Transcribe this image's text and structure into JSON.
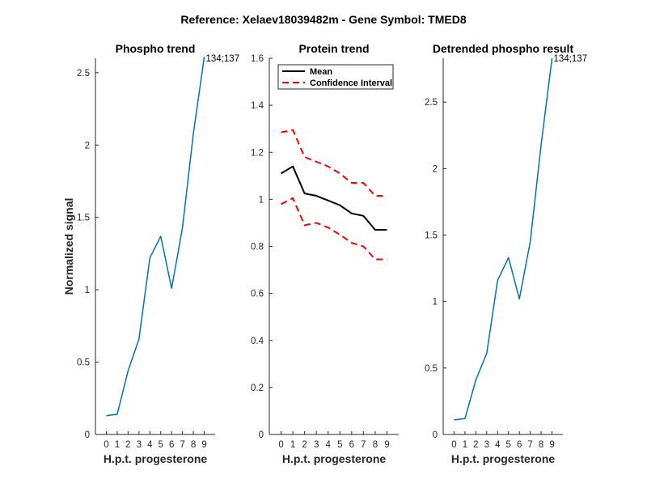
{
  "figure": {
    "suptitle": "Reference:  Xelaev18039482m - Gene Symbol:  TMED8",
    "blue": "#0072BD",
    "black": "#000000",
    "red": "#FF0000"
  },
  "chart_data": [
    {
      "type": "line",
      "title": "Phospho trend",
      "xlabel": "H.p.t. progesterone",
      "ylabel": "Normalized signal",
      "xlim": [
        -1,
        10
      ],
      "ylim": [
        0,
        2.6
      ],
      "x_ticks": [
        0,
        1,
        2,
        3,
        4,
        5,
        6,
        7,
        8,
        9
      ],
      "y_ticks": [
        0,
        0.5,
        1,
        1.5,
        2,
        2.5
      ],
      "y_tick_labels": [
        "0",
        "0.5",
        "1",
        "1.5",
        "2",
        "2.5"
      ],
      "series": [
        {
          "x": [
            0,
            1,
            2,
            3,
            4,
            5,
            6,
            7,
            8,
            9
          ],
          "values": [
            0.13,
            0.14,
            0.44,
            0.66,
            1.22,
            1.37,
            1.01,
            1.43,
            2.08,
            2.61
          ],
          "color": "#0072BD"
        }
      ],
      "annotations": [
        {
          "text": "134;137",
          "x": 9,
          "y": 2.6
        }
      ]
    },
    {
      "type": "line",
      "title": "Protein trend",
      "xlabel": "H.p.t. progesterone",
      "ylabel": "",
      "xlim": [
        -1,
        10
      ],
      "ylim": [
        0,
        1.6
      ],
      "x_ticks": [
        0,
        1,
        2,
        3,
        4,
        5,
        6,
        7,
        8,
        9
      ],
      "y_ticks": [
        0,
        0.2,
        0.4,
        0.6,
        0.8,
        1,
        1.2,
        1.4,
        1.6
      ],
      "y_tick_labels": [
        "0",
        "0.2",
        "0.4",
        "0.6",
        "0.8",
        "1",
        "1.2",
        "1.4",
        "1.6"
      ],
      "legend_position": "top-left",
      "series": [
        {
          "name": "Mean",
          "x": [
            0,
            1,
            2,
            3,
            4,
            5,
            6,
            7,
            8,
            9
          ],
          "values": [
            1.11,
            1.14,
            1.025,
            1.015,
            0.995,
            0.975,
            0.94,
            0.93,
            0.87,
            0.87
          ],
          "color": "#000000",
          "style": "solid"
        },
        {
          "name": "Confidence Interval",
          "x": [
            0,
            1,
            2,
            3,
            4,
            5,
            6,
            7,
            8,
            9
          ],
          "values": [
            1.285,
            1.295,
            1.18,
            1.16,
            1.14,
            1.11,
            1.07,
            1.07,
            1.015,
            1.015
          ],
          "color": "#FF0000",
          "style": "dashed"
        },
        {
          "x": [
            0,
            1,
            2,
            3,
            4,
            5,
            6,
            7,
            8,
            9
          ],
          "values": [
            0.98,
            1.005,
            0.89,
            0.9,
            0.88,
            0.85,
            0.815,
            0.8,
            0.745,
            0.745
          ],
          "color": "#FF0000",
          "style": "dashed"
        }
      ]
    },
    {
      "type": "line",
      "title": "Detrended phospho result",
      "xlabel": "H.p.t. progesterone",
      "ylabel": "",
      "xlim": [
        -1,
        10
      ],
      "ylim": [
        0,
        2.83
      ],
      "x_ticks": [
        0,
        1,
        2,
        3,
        4,
        5,
        6,
        7,
        8,
        9
      ],
      "y_ticks": [
        0,
        0.5,
        1,
        1.5,
        2,
        2.5
      ],
      "y_tick_labels": [
        "0",
        "0.5",
        "1",
        "1.5",
        "2",
        "2.5"
      ],
      "series": [
        {
          "x": [
            0,
            1,
            2,
            3,
            4,
            5,
            6,
            7,
            8,
            9
          ],
          "values": [
            0.11,
            0.12,
            0.41,
            0.61,
            1.16,
            1.33,
            1.02,
            1.45,
            2.18,
            2.83
          ],
          "color": "#0072BD"
        }
      ],
      "annotations": [
        {
          "text": "134;137",
          "x": 9,
          "y": 2.83
        }
      ]
    }
  ]
}
